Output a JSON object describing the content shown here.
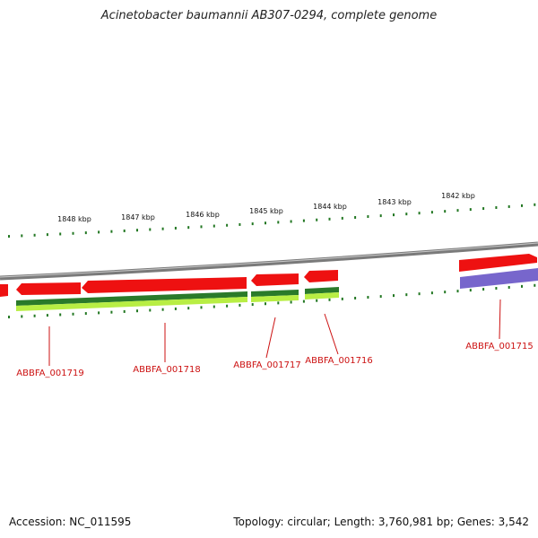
{
  "title": "Acinetobacter baumannii AB307-0294, complete genome",
  "footer": {
    "accession": "Accession: NC_011595",
    "topology": "Topology: circular; Length: 3,760,981 bp; Genes: 3,542"
  },
  "colors": {
    "backbone": "#8a8a8a",
    "forward_gene": "#ee1111",
    "reverse_gene": "#7766cc",
    "tick": "#227722",
    "label": "#cc1111",
    "gc_dark": "#2a7a2a",
    "gc_light": "#b8ee44"
  },
  "ruler": {
    "unit": "kbp",
    "labels": [
      "1848 kbp",
      "1847 kbp",
      "1846 kbp",
      "1845 kbp",
      "1844 kbp",
      "1843 kbp",
      "1842 kbp"
    ]
  },
  "genes": [
    {
      "label": "ABBFA_001719"
    },
    {
      "label": "ABBFA_001718"
    },
    {
      "label": "ABBFA_001717"
    },
    {
      "label": "ABBFA_001716"
    },
    {
      "label": "ABBFA_001715"
    }
  ]
}
